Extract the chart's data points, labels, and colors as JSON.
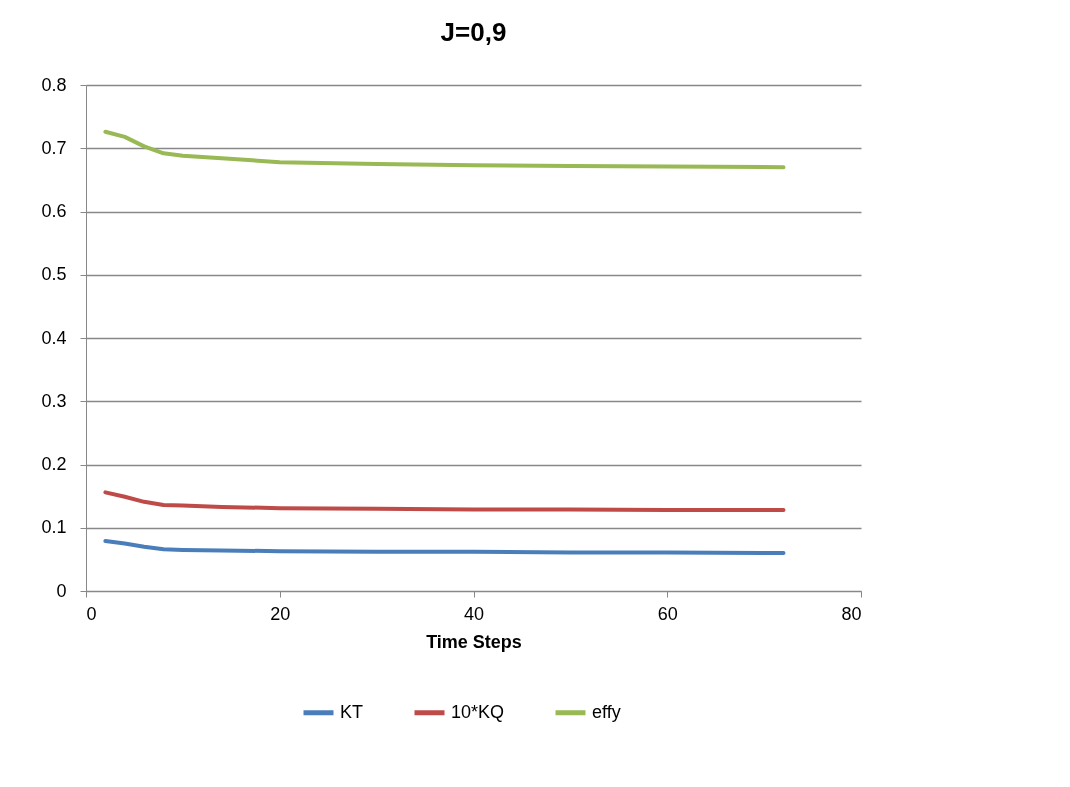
{
  "chart_data": {
    "type": "line",
    "title": "J=0,9",
    "xlabel": "Time Steps",
    "x": [
      2,
      4,
      6,
      8,
      10,
      14,
      20,
      30,
      40,
      50,
      60,
      72
    ],
    "series": [
      {
        "name": "KT",
        "color": "#4a7ebb",
        "values": [
          0.079,
          0.075,
          0.07,
          0.066,
          0.065,
          0.064,
          0.063,
          0.062,
          0.062,
          0.061,
          0.061,
          0.06
        ]
      },
      {
        "name": "10*KQ",
        "color": "#be4b48",
        "values": [
          0.156,
          0.149,
          0.141,
          0.136,
          0.135,
          0.133,
          0.131,
          0.13,
          0.129,
          0.129,
          0.128,
          0.128
        ]
      },
      {
        "name": "effy",
        "color": "#98b954",
        "values": [
          0.726,
          0.718,
          0.703,
          0.692,
          0.688,
          0.684,
          0.678,
          0.675,
          0.673,
          0.672,
          0.671,
          0.67
        ]
      }
    ],
    "xlim": [
      0,
      80
    ],
    "xticks": [
      0,
      20,
      40,
      60,
      80
    ],
    "ylim": [
      0,
      0.8
    ],
    "yticks": [
      0,
      0.1,
      0.2,
      0.3,
      0.4,
      0.5,
      0.6,
      0.7,
      0.8
    ],
    "grid": "y",
    "legend": "bottom",
    "marker": "none",
    "line_style": "solid"
  }
}
